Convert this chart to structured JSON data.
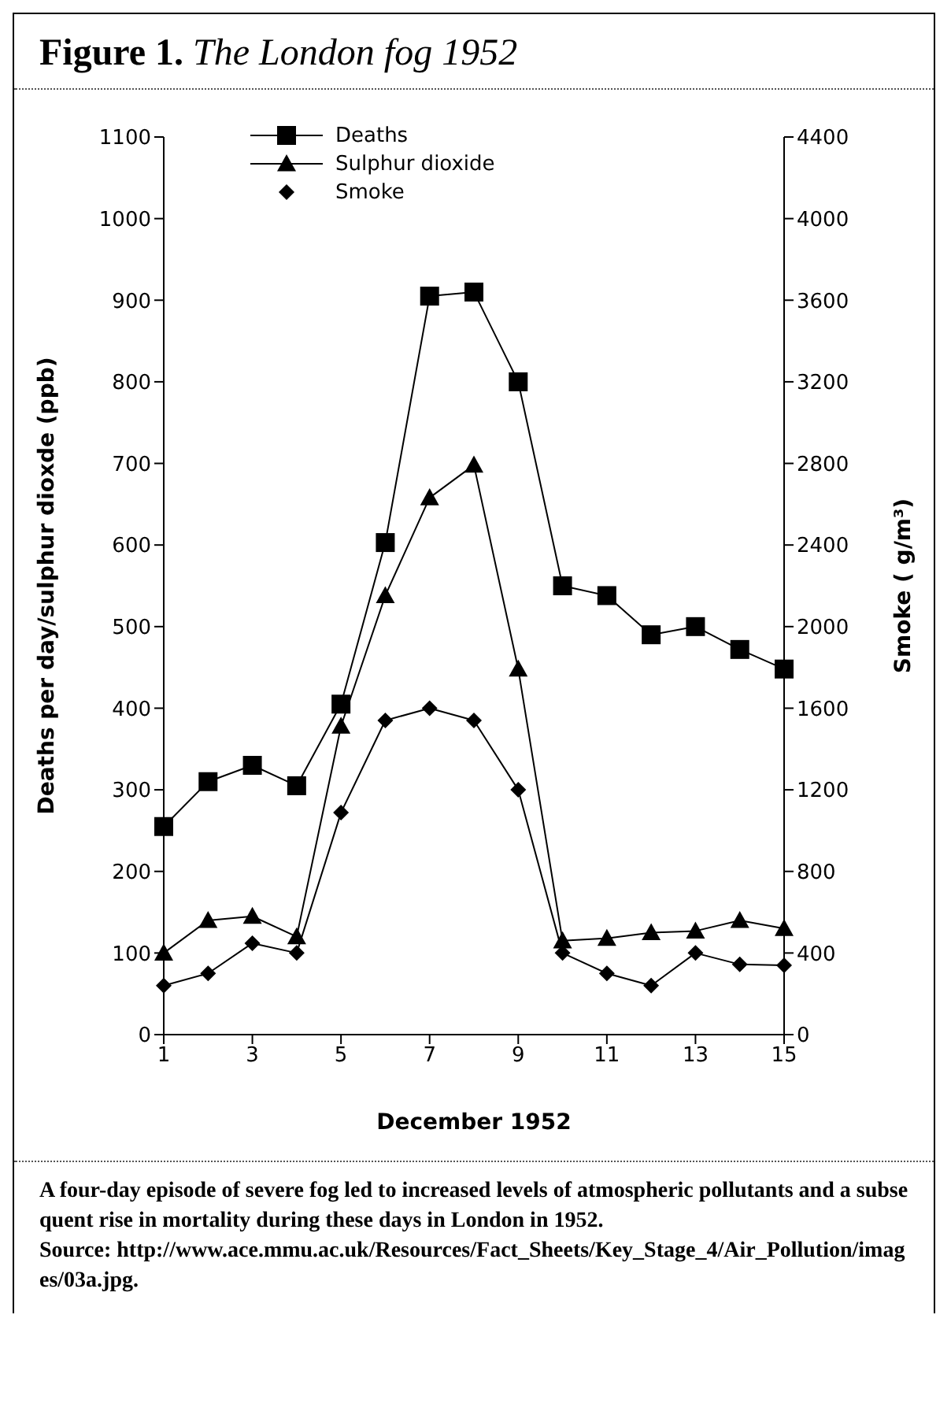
{
  "chart_data": {
    "type": "line",
    "title": "Figure 1. The London fog 1952",
    "xlabel": "December 1952",
    "ylabel": "Deaths per day/sulphur dioxde (ppb)",
    "y2label": "Smoke ( g/m³)",
    "x": [
      1,
      2,
      3,
      4,
      5,
      6,
      7,
      8,
      9,
      10,
      11,
      12,
      13,
      14,
      15
    ],
    "series": [
      {
        "name": "Deaths",
        "color": "#000000",
        "marker": "square",
        "values": [
          255,
          310,
          330,
          305,
          405,
          603,
          905,
          910,
          800,
          550,
          538,
          490,
          500,
          472,
          448
        ]
      },
      {
        "name": "Sulphur dioxide",
        "color": "#000000",
        "marker": "triangle",
        "values": [
          100,
          140,
          145,
          120,
          378,
          538,
          658,
          698,
          448,
          115,
          118,
          125,
          127,
          140,
          130
        ]
      },
      {
        "name": "Smoke",
        "color": "#000000",
        "marker": "diamond",
        "axis": "y2",
        "values": [
          240,
          300,
          448,
          400,
          1088,
          1540,
          1600,
          1540,
          1200,
          400,
          300,
          240,
          400,
          344,
          340
        ]
      }
    ],
    "xlim": [
      1,
      15
    ],
    "xticks": [
      1,
      3,
      5,
      7,
      9,
      11,
      13,
      15
    ],
    "ylim": [
      0,
      1100
    ],
    "yticks": [
      0,
      100,
      200,
      300,
      400,
      500,
      600,
      700,
      800,
      900,
      1000,
      1100
    ],
    "y2lim": [
      0,
      4400
    ],
    "y2ticks": [
      0,
      400,
      800,
      1200,
      1600,
      2000,
      2400,
      2800,
      3200,
      3600,
      4000,
      4400
    ],
    "grid": false,
    "legend": "top left",
    "annotations": [
      "A four-day episode of severe fog led to increased levels of atmospheric pollutants and a subsequent rise in mortality during these days in London in 1952.",
      "Source: http://www.ace.mmu.ac.uk/Resources/Fact_Sheets/Key_Stage_4/Air_Pollution/images/03a.jpg."
    ]
  }
}
